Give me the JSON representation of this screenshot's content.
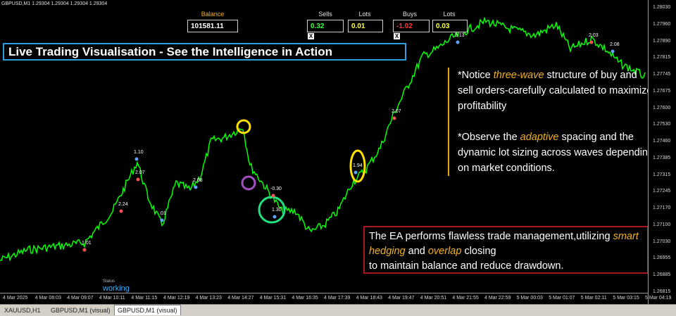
{
  "window": {
    "symbol_info": "GBPUSD,M1  1.29304 1.29304 1.29304 1.29304"
  },
  "panel": {
    "balance_label": "Balance",
    "balance_value": "101581.11",
    "sells_label": "Sells",
    "sells_value": "0.32",
    "lots_label": "Lots",
    "sells_lots_value": "0.01",
    "buys_label": "Buys",
    "buys_value": "-1.02",
    "buys_lots_label": "Lots",
    "buys_lots_value": "0.03",
    "close_glyph": "X"
  },
  "banner": {
    "text": "Live Trading Visualisation - See the Intelligence in Action"
  },
  "notice": {
    "line1_pre": "*Notice ",
    "line1_hl": "three-wave",
    "line1_post": " structure of buy and sell orders-carefully calculated to maximize profitability",
    "line2_pre": "*Observe the ",
    "line2_hl": "adaptive",
    "line2_post": " spacing and the dynamic lot sizing across waves depending on market conditions."
  },
  "ea_box": {
    "text_pre": "The EA performs flawless trade management,utilizing ",
    "hl1": "smart hedging",
    "mid": " and ",
    "hl2": "overlap",
    "text_post": " closing",
    "line3": "to maintain balance and reduce drawdown."
  },
  "status": {
    "label": "Status",
    "value": "working"
  },
  "price_axis": [
    "1.28030",
    "1.27960",
    "1.27890",
    "1.27815",
    "1.27745",
    "1.27675",
    "1.27600",
    "1.27530",
    "1.27460",
    "1.27385",
    "1.27315",
    "1.27245",
    "1.27170",
    "1.27100",
    "1.27030",
    "1.26955",
    "1.26885",
    "1.26815"
  ],
  "time_axis": [
    "4 Mar 2025",
    "4 Mar 08:03",
    "4 Mar 09:07",
    "4 Mar 10:11",
    "4 Mar 11:15",
    "4 Mar 12:19",
    "4 Mar 13:23",
    "4 Mar 14:27",
    "4 Mar 15:31",
    "4 Mar 16:35",
    "4 Mar 17:39",
    "4 Mar 18:43",
    "4 Mar 19:47",
    "4 Mar 20:51",
    "4 Mar 21:55",
    "4 Mar 22:59",
    "5 Mar 00:03",
    "5 Mar 01:07",
    "5 Mar 02:11",
    "5 Mar 03:15",
    "5 Mar 04:19"
  ],
  "trade_labels": [
    "1.10",
    "2.07",
    "2.08",
    "2.24",
    ".01",
    "1.01",
    "1.94",
    "-0.30",
    "1.30",
    "2.07",
    "3.13",
    "2.03",
    "2.08"
  ],
  "tabs": [
    "XAUUSD,H1",
    "GBPUSD,M1 (visual)",
    "GBPUSD,M1 (visual)"
  ],
  "colors": {
    "price_line": "#00ff00",
    "banner_border": "#2b9fe0",
    "notice_bar": "#e8a30c",
    "highlight": "#f2b01e",
    "ea_border": "#a8171b",
    "sells_value": "#33ff33",
    "lots_value": "#ffff33",
    "buys_value": "#ff3333"
  }
}
